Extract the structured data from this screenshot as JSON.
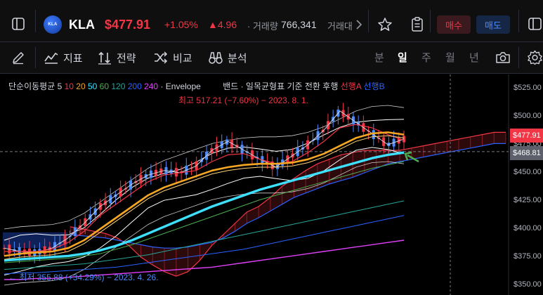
{
  "header": {
    "symbol": "KLA",
    "logo_text": "KLA",
    "price": "$477.91",
    "change_pct": "+1.05%",
    "change_abs": "▲4.96",
    "volume_label": "· 거래량",
    "volume_value": "766,341",
    "volume_label_2": "거래대",
    "buy_label": "매수",
    "sell_label": "매도"
  },
  "toolbar": {
    "indicators_label": "지표",
    "strategy_label": "전략",
    "compare_label": "비교",
    "analysis_label": "분석",
    "timeframes": [
      "분",
      "일",
      "주",
      "월",
      "년"
    ],
    "active_timeframe": "일"
  },
  "legend": {
    "ma_label": "단순이동평균",
    "ma_periods": [
      {
        "text": "5",
        "color": "#d1d4dc"
      },
      {
        "text": "10",
        "color": "#f23645"
      },
      {
        "text": "20",
        "color": "#f5a623"
      },
      {
        "text": "50",
        "color": "#3de0ff"
      },
      {
        "text": "60",
        "color": "#4caf50"
      },
      {
        "text": "120",
        "color": "#26a69a"
      },
      {
        "text": "200",
        "color": "#2962ff"
      },
      {
        "text": "240",
        "color": "#e040fb"
      }
    ],
    "envelope_label": "· Envelope",
    "ichimoku_label": "밴드 · 일목균형표 기준 전환 후행",
    "lead_a": "선행A",
    "lead_b": "선행B",
    "high_label": "최고 517.21 (−7.60%) − 2023. 8. 1.",
    "low_label": "← 최저 355.88 (+34.29%) − 2023. 4. 26."
  },
  "axis": {
    "ticks": [
      "$525.00",
      "$500.00",
      "$475.00",
      "$450.00",
      "$425.00",
      "$400.00",
      "$375.00",
      "$350.00"
    ],
    "current_price_tag": "$477.91",
    "secondary_tag": "$468.81"
  },
  "colors": {
    "up": "#f23645",
    "down": "#2962ff",
    "background": "#000000"
  },
  "chart_data": {
    "type": "line",
    "ylim": [
      345,
      530
    ],
    "series": [
      {
        "name": "5",
        "values": [
          383,
          380,
          379,
          383,
          392,
          405,
          420,
          430,
          440,
          448,
          452,
          450,
          456,
          470,
          478,
          470,
          462,
          455,
          465,
          475,
          488,
          505,
          495,
          485,
          475,
          480
        ]
      },
      {
        "name": "10",
        "values": [
          380,
          380,
          380,
          382,
          388,
          398,
          412,
          422,
          432,
          442,
          448,
          450,
          452,
          460,
          466,
          467,
          462,
          458,
          460,
          468,
          478,
          490,
          493,
          490,
          484,
          479
        ]
      },
      {
        "name": "20",
        "values": [
          376,
          378,
          379,
          380,
          383,
          390,
          400,
          410,
          420,
          430,
          437,
          442,
          447,
          452,
          455,
          457,
          458,
          458,
          459,
          462,
          467,
          474,
          481,
          485,
          486,
          484
        ]
      },
      {
        "name": "50",
        "values": [
          372,
          373,
          374,
          375,
          376,
          378,
          381,
          385,
          390,
          396,
          402,
          408,
          414,
          420,
          425,
          430,
          435,
          439,
          443,
          447,
          451,
          455,
          459,
          463,
          466,
          468
        ]
      },
      {
        "name": "60",
        "values": [
          370,
          371,
          372,
          373,
          374,
          376,
          378,
          382,
          386,
          391,
          396,
          401,
          406,
          411,
          416,
          421,
          426,
          430,
          434,
          438,
          442,
          446,
          450,
          454,
          457,
          460
        ]
      },
      {
        "name": "120",
        "values": [
          364,
          365,
          366,
          367,
          368,
          369,
          371,
          373,
          375,
          377,
          380,
          383,
          386,
          389,
          392,
          395,
          398,
          401,
          404,
          407,
          410,
          413,
          416,
          419,
          422,
          425
        ]
      },
      {
        "name": "200",
        "values": [
          360,
          361,
          361,
          362,
          363,
          364,
          365,
          366,
          368,
          370,
          372,
          374,
          376,
          378,
          380,
          382,
          385,
          388,
          391,
          394,
          397,
          400,
          403,
          406,
          409,
          412
        ]
      },
      {
        "name": "240",
        "values": [
          355,
          355,
          356,
          356,
          357,
          358,
          359,
          360,
          361,
          362,
          363,
          364,
          365,
          366,
          368,
          370,
          372,
          374,
          376,
          378,
          380,
          382,
          384,
          386,
          388,
          390
        ]
      }
    ]
  }
}
